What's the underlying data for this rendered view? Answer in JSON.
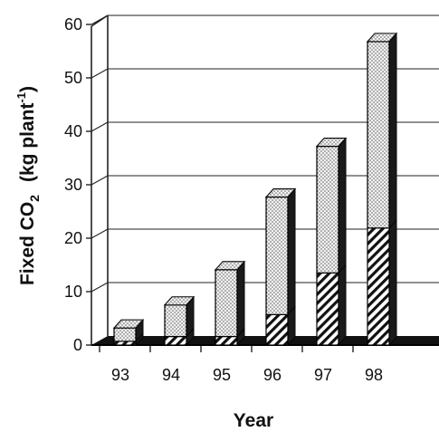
{
  "chart_data": {
    "type": "bar",
    "stacked": true,
    "three_d": true,
    "categories": [
      "93",
      "94",
      "95",
      "96",
      "97",
      "98"
    ],
    "series": [
      {
        "pattern": "diagonal-hatch",
        "values": [
          0.7,
          1.6,
          1.6,
          5.7,
          13.5,
          21.9
        ]
      },
      {
        "pattern": "dotted",
        "values": [
          2.5,
          5.9,
          12.5,
          22.0,
          23.7,
          34.9
        ]
      }
    ],
    "xlabel": "Year",
    "ylabel_main": "Fixed CO",
    "ylabel_sub": "2",
    "ylabel_unit": "(kg plant",
    "ylabel_sup": "-1",
    "ylabel_close": ")",
    "ylim": [
      0,
      60
    ],
    "yticks": [
      0,
      10,
      20,
      30,
      40,
      50,
      60
    ],
    "grid": true,
    "legend": "none",
    "colors": {
      "bar_fill": "#f0f0f0",
      "dots": "#555555",
      "hatch": "#111111",
      "floor": "#111111",
      "grid": "#222222"
    }
  }
}
